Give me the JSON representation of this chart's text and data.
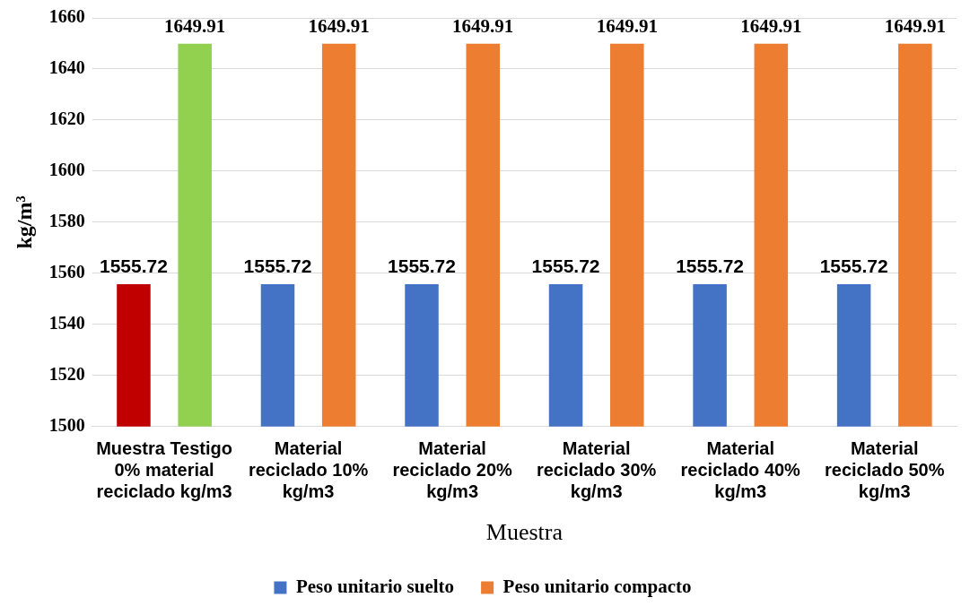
{
  "chart_data": {
    "type": "bar",
    "xlabel": "Muestra",
    "ylabel": "kg/m³",
    "categories": [
      "Muestra Testigo 0% material reciclado kg/m3",
      "Material reciclado 10%     kg/m3",
      "Material reciclado 20%     kg/m3",
      "Material reciclado 30%     kg/m3",
      "Material reciclado 40%     kg/m3",
      "Material reciclado 50%     kg/m3"
    ],
    "series": [
      {
        "name": "Peso unitario suelto",
        "color": "#4472c4",
        "colors": [
          "#c00000",
          "#4472c4",
          "#4472c4",
          "#4472c4",
          "#4472c4",
          "#4472c4"
        ],
        "values": [
          1555.72,
          1555.72,
          1555.72,
          1555.72,
          1555.72,
          1555.72
        ]
      },
      {
        "name": "Peso unitario compacto",
        "color": "#ed7d31",
        "colors": [
          "#92d050",
          "#ed7d31",
          "#ed7d31",
          "#ed7d31",
          "#ed7d31",
          "#ed7d31"
        ],
        "values": [
          1649.91,
          1649.91,
          1649.91,
          1649.91,
          1649.91,
          1649.91
        ]
      }
    ],
    "ylim": [
      1500,
      1660
    ],
    "yticks": [
      1500,
      1520,
      1540,
      1560,
      1580,
      1600,
      1620,
      1640,
      1660
    ],
    "grid": "y",
    "legend": "bottom",
    "data_labels": true
  }
}
